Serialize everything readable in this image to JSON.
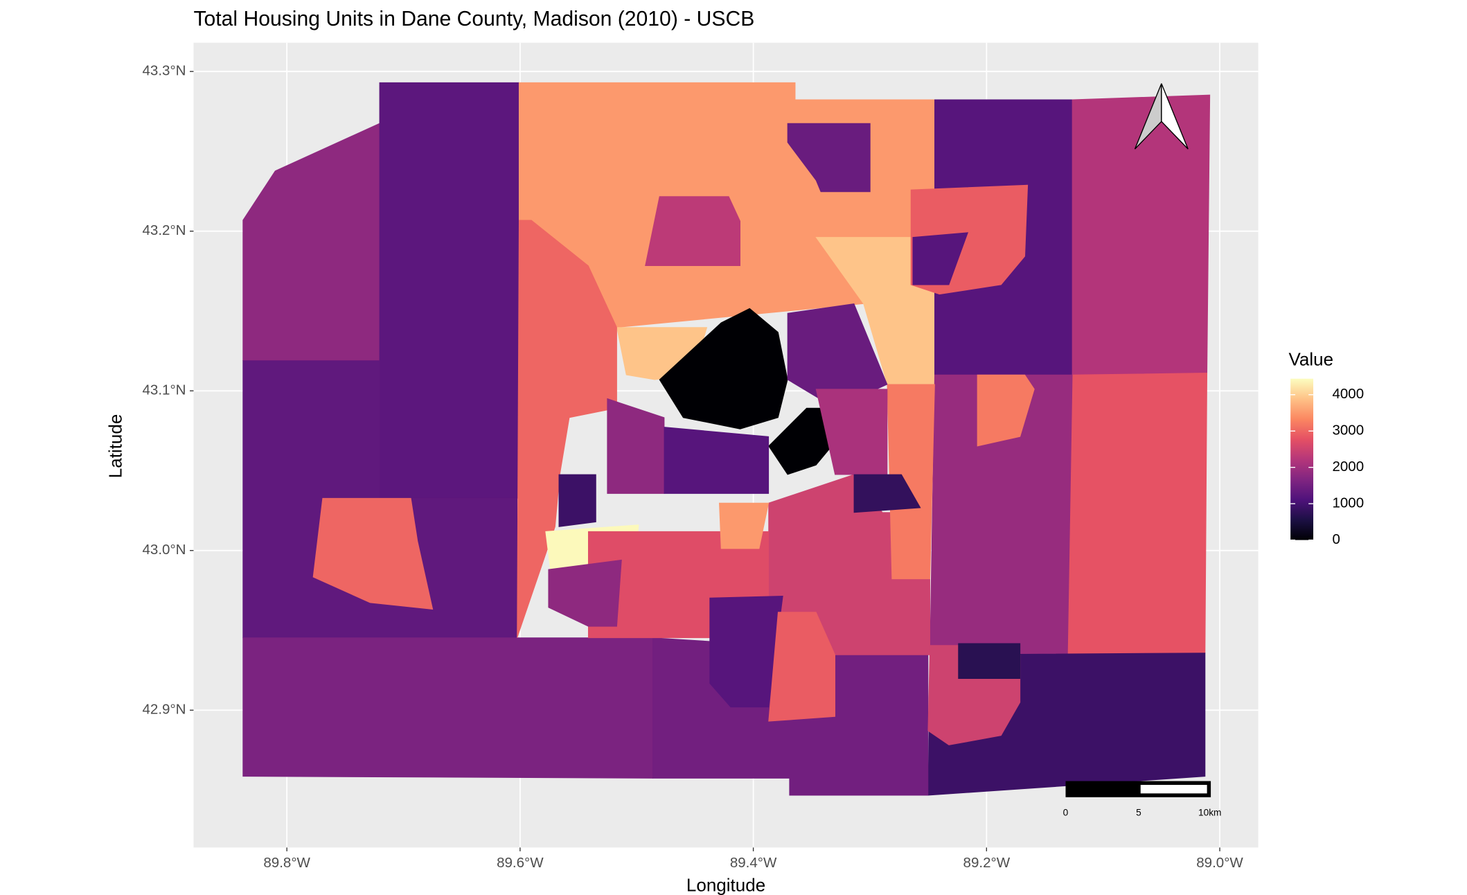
{
  "chart_data": {
    "type": "choropleth",
    "title": "Total Housing Units in Dane County, Madison (2010) - USCB",
    "x_label": "Longitude",
    "y_label": "Latitude",
    "xlim": [
      -89.88,
      -88.967
    ],
    "ylim": [
      42.814,
      43.318
    ],
    "xticks": [
      {
        "value": -89.8,
        "label": "89.8°W"
      },
      {
        "value": -89.6,
        "label": "89.6°W"
      },
      {
        "value": -89.4,
        "label": "89.4°W"
      },
      {
        "value": -89.2,
        "label": "89.2°W"
      },
      {
        "value": -89.0,
        "label": "89.0°W"
      }
    ],
    "yticks": [
      {
        "value": 42.9,
        "label": "42.9°N"
      },
      {
        "value": 43.0,
        "label": "43.0°N"
      },
      {
        "value": 43.1,
        "label": "43.1°N"
      },
      {
        "value": 43.2,
        "label": "43.2°N"
      },
      {
        "value": 43.3,
        "label": "43.3°N"
      }
    ],
    "grid": true,
    "colormap": "magma",
    "legend_title": "Value",
    "legend_lim": [
      0,
      4440
    ],
    "legend_ticks": [
      0,
      1000,
      2000,
      3000,
      4000
    ],
    "scale_bar_labels": [
      "0",
      "5",
      "10km"
    ],
    "values": [
      1800,
      1250,
      1300,
      3000,
      1600,
      3500,
      3900,
      3900,
      3000,
      0,
      0,
      4400,
      1200,
      2200,
      2800,
      1900,
      900,
      1500,
      2500,
      2700,
      3200,
      1800,
      1200,
      1400,
      2100,
      800,
      2500,
      700,
      1400,
      2300,
      2900,
      1200,
      1800,
      900,
      1200,
      2900,
      3500,
      3200
    ]
  }
}
